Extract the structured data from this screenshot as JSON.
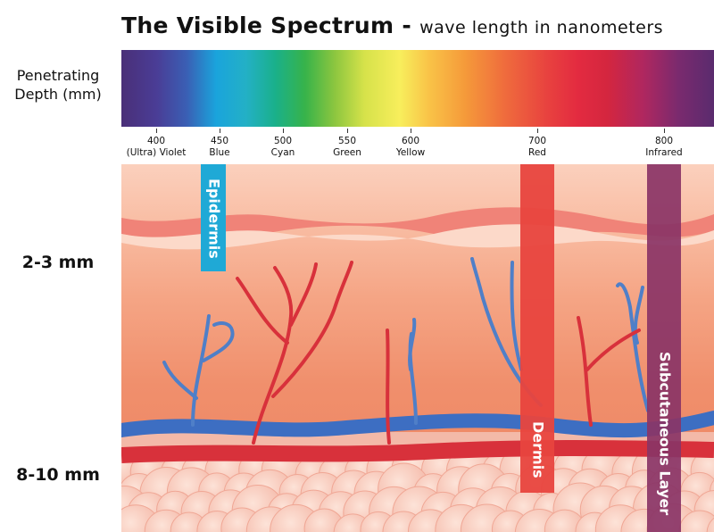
{
  "title": {
    "main": "The Visible Spectrum",
    "separator": " - ",
    "subtitle": "wave length in nanometers"
  },
  "axis_label": {
    "line1": "Penetrating",
    "line2": "Depth (mm)"
  },
  "ticks": [
    {
      "value": "400",
      "name": "(Ultra) Violet"
    },
    {
      "value": "450",
      "name": "Blue"
    },
    {
      "value": "500",
      "name": "Cyan"
    },
    {
      "value": "550",
      "name": "Green"
    },
    {
      "value": "600",
      "name": "Yellow"
    },
    {
      "value": "700",
      "name": "Red"
    },
    {
      "value": "800",
      "name": "Infrared"
    }
  ],
  "depth_labels": {
    "top": "2-3 mm",
    "bottom": "8-10 mm"
  },
  "penetration_bars": {
    "epidermis": {
      "label": "Epidermis",
      "color": "#1fa9d6"
    },
    "dermis": {
      "label": "Dermis",
      "color": "#e8443e"
    },
    "subcutaneous": {
      "label": "Subcutaneous Layer",
      "color": "#8a3466"
    }
  },
  "colors": {
    "skin_top": "#f9c6b0",
    "skin_mid": "#f4a07e",
    "artery": "#d9303a",
    "vein": "#3c6fc0",
    "fat_cells": "#f7c4b6"
  }
}
